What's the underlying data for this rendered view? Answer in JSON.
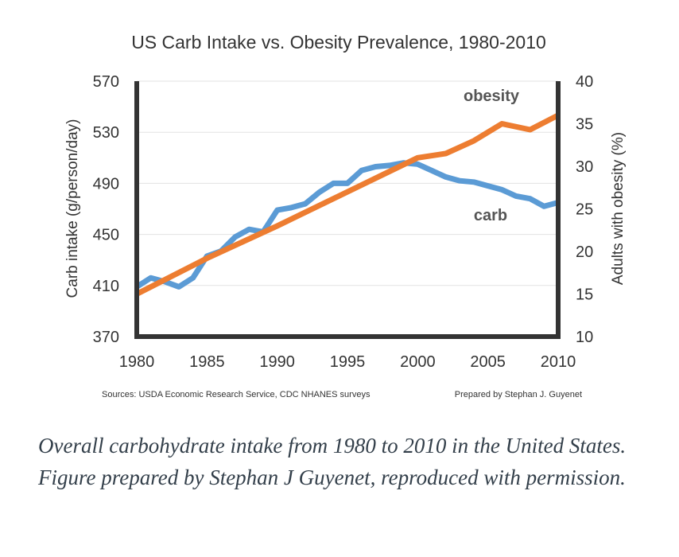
{
  "chart_data": {
    "type": "line",
    "title": "US Carb Intake vs. Obesity Prevalence, 1980-2010",
    "xlabel": "",
    "ylabel_left": "Carb intake (g/person/day)",
    "ylabel_right": "Adults with obesity (%)",
    "xlim": [
      1980,
      2010
    ],
    "ylim_left": [
      370,
      570
    ],
    "ylim_right": [
      10,
      40
    ],
    "x_ticks": [
      "1980",
      "1985",
      "1990",
      "1995",
      "2000",
      "2005",
      "2010"
    ],
    "y_ticks_left": [
      "370",
      "410",
      "450",
      "490",
      "530",
      "570"
    ],
    "y_ticks_right": [
      "10",
      "15",
      "20",
      "25",
      "30",
      "35",
      "40"
    ],
    "grid": true,
    "series": [
      {
        "name": "carb",
        "axis": "left",
        "color": "#5b9bd5",
        "x": [
          1980,
          1981,
          1982,
          1983,
          1984,
          1985,
          1986,
          1987,
          1988,
          1989,
          1990,
          1991,
          1992,
          1993,
          1994,
          1995,
          1996,
          1997,
          1998,
          1999,
          2000,
          2001,
          2002,
          2003,
          2004,
          2005,
          2006,
          2007,
          2008,
          2009,
          2010
        ],
        "values": [
          409,
          416,
          413,
          409,
          416,
          433,
          437,
          448,
          454,
          452,
          469,
          471,
          474,
          483,
          490,
          490,
          500,
          503,
          504,
          506,
          505,
          500,
          495,
          492,
          491,
          488,
          485,
          480,
          478,
          472,
          475
        ]
      },
      {
        "name": "obesity",
        "axis": "right",
        "color": "#ed7d31",
        "x": [
          1980,
          1985,
          1990,
          1995,
          2000,
          2002,
          2004,
          2006,
          2008,
          2010
        ],
        "values": [
          15.0,
          19.2,
          23.0,
          27.0,
          31.0,
          31.5,
          33.0,
          35.0,
          34.3,
          36.0
        ]
      }
    ],
    "annotations": {
      "obesity_label": "obesity",
      "carb_label": "carb"
    },
    "sources": "Sources: USDA Economic Research Service, CDC NHANES surveys",
    "prepared_by": "Prepared by Stephan J. Guyenet"
  },
  "caption": "Overall carbohydrate intake from 1980 to 2010 in the United States. Figure prepared by Stephan J Guyenet, reproduced with permission."
}
